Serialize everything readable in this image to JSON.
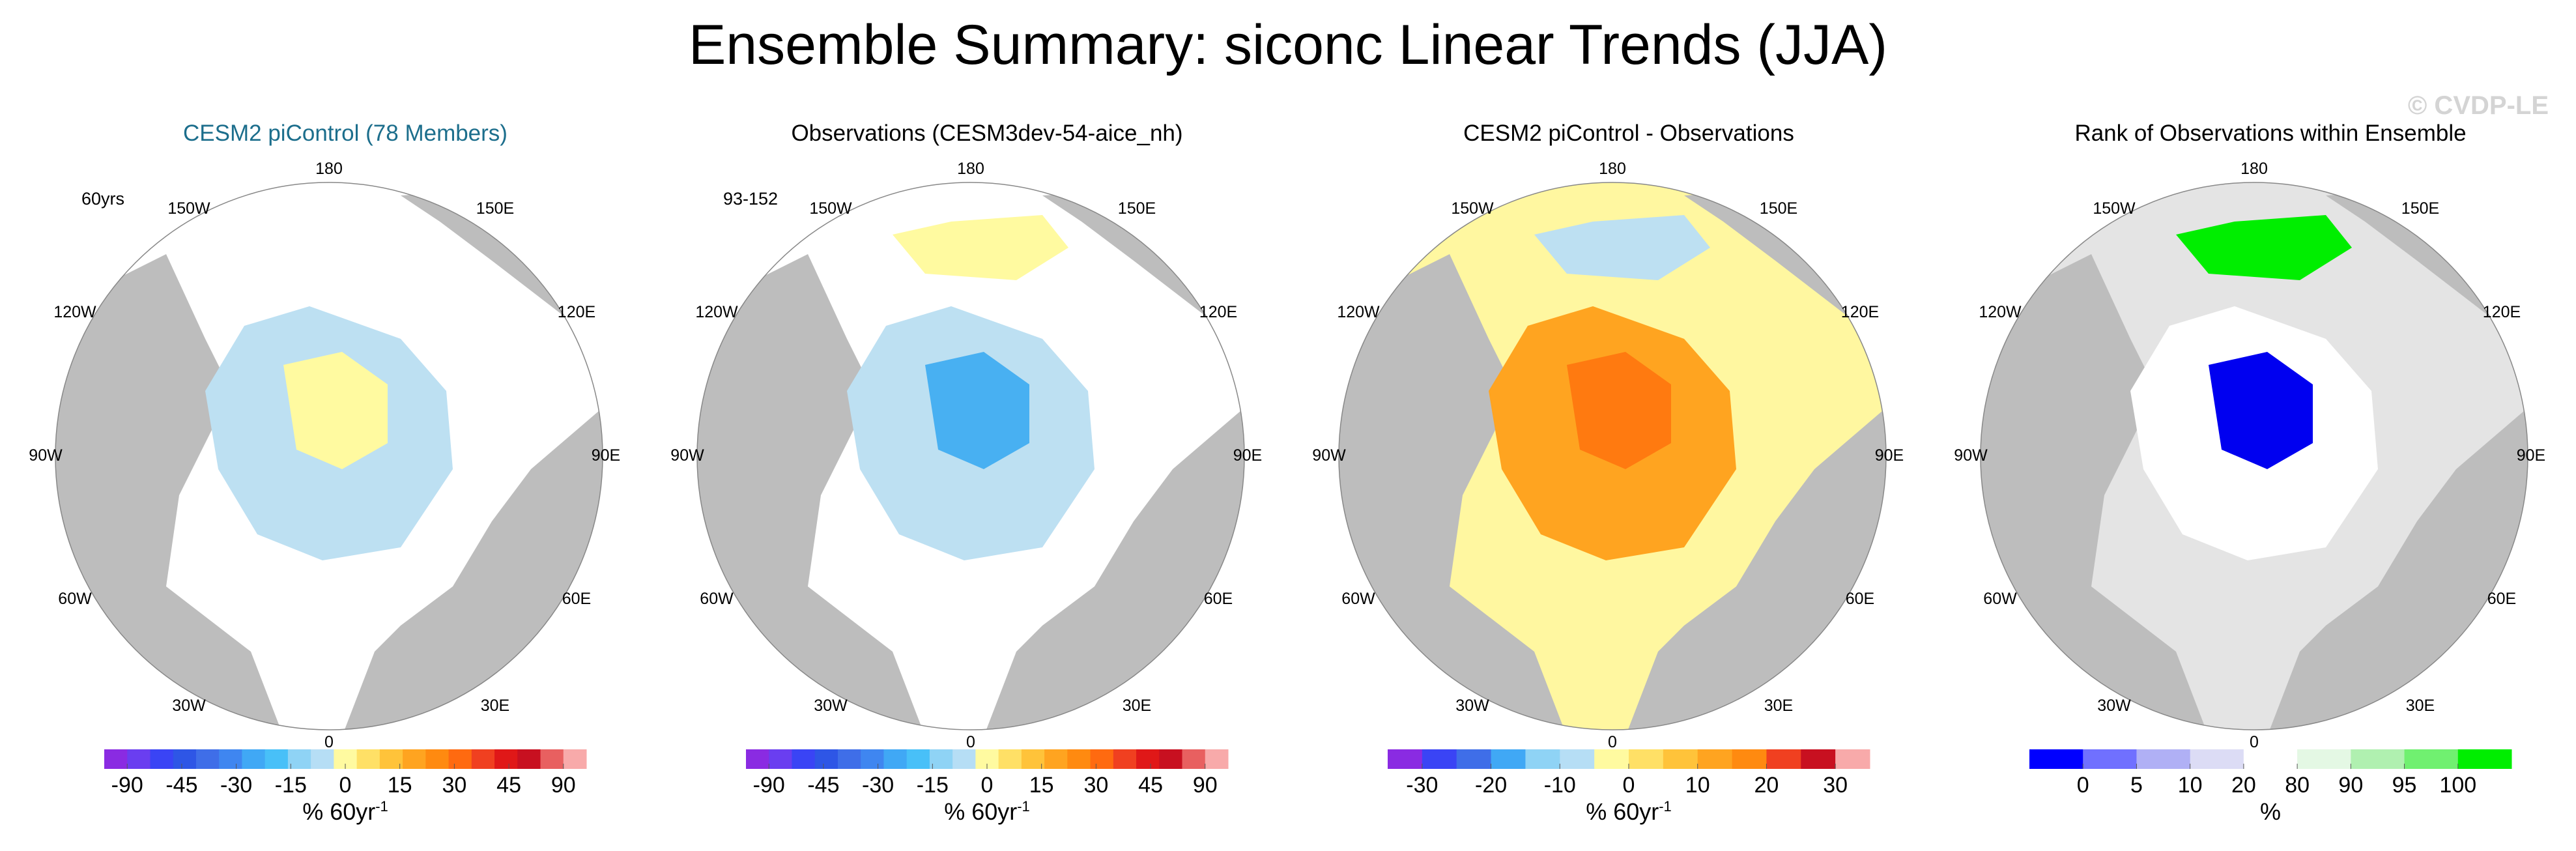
{
  "title": "Ensemble Summary: siconc Linear Trends (JJA)",
  "watermark": "© CVDP-LE",
  "longitude_labels": {
    "top": "180",
    "bottom": "0",
    "ul": "150W",
    "ur": "150E",
    "ml1": "120W",
    "mr1": "120E",
    "ml2": "90W",
    "mr2": "90E",
    "ll1": "60W",
    "lr1": "60E",
    "ll2": "30W",
    "lr2": "30E"
  },
  "chart_data": [
    {
      "type": "heatmap",
      "title": "CESM2 piControl (78 Members)",
      "label": "60yrs",
      "colorbar_ticks": [
        "-90",
        "-45",
        "-30",
        "-15",
        "0",
        "15",
        "30",
        "45",
        "90"
      ],
      "colorbar_units": "% 60yr",
      "colorbar_units_exp": "-1",
      "colors": [
        "#8a2be2",
        "#6a3ef0",
        "#3a44f5",
        "#2e56e6",
        "#3f6ee8",
        "#3f86f0",
        "#40a8f5",
        "#48c0f8",
        "#8fd3f5",
        "#b6def5",
        "#fffaa0",
        "#ffe066",
        "#ffc33a",
        "#ffa420",
        "#ff8a10",
        "#ff6a10",
        "#f04020",
        "#e01818",
        "#c81020",
        "#e86060",
        "#f8aaaa"
      ]
    },
    {
      "type": "heatmap",
      "title": "Observations (CESM3dev-54-aice_nh)",
      "label": "93-152",
      "colorbar_ticks": [
        "-90",
        "-45",
        "-30",
        "-15",
        "0",
        "15",
        "30",
        "45",
        "90"
      ],
      "colorbar_units": "% 60yr",
      "colorbar_units_exp": "-1",
      "colors": [
        "#8a2be2",
        "#6a3ef0",
        "#3a44f5",
        "#2e56e6",
        "#3f6ee8",
        "#3f86f0",
        "#40a8f5",
        "#48c0f8",
        "#8fd3f5",
        "#b6def5",
        "#fffaa0",
        "#ffe066",
        "#ffc33a",
        "#ffa420",
        "#ff8a10",
        "#ff6a10",
        "#f04020",
        "#e01818",
        "#c81020",
        "#e86060",
        "#f8aaaa"
      ]
    },
    {
      "type": "heatmap",
      "title": "CESM2 piControl - Observations",
      "label": "",
      "colorbar_ticks": [
        "-30",
        "-20",
        "-10",
        "0",
        "10",
        "20",
        "30"
      ],
      "colorbar_units": "% 60yr",
      "colorbar_units_exp": "-1",
      "colors": [
        "#8a2be2",
        "#3a44f5",
        "#3f6ee8",
        "#40a8f5",
        "#8fd3f5",
        "#b6def5",
        "#fffaa0",
        "#ffe066",
        "#ffc33a",
        "#ffa420",
        "#ff8a10",
        "#f04020",
        "#c81020",
        "#f8aaaa"
      ]
    },
    {
      "type": "heatmap",
      "title": "Rank of Observations within Ensemble",
      "label": "",
      "colorbar_ticks": [
        "0",
        "5",
        "10",
        "20",
        "80",
        "90",
        "95",
        "100"
      ],
      "colorbar_units": "%",
      "colorbar_units_exp": "",
      "colors": [
        "#0000ff",
        "#7070ff",
        "#b0b0f5",
        "#dcdcf5",
        "#ffffff",
        "#e4f8e4",
        "#b0f0b0",
        "#70f070",
        "#00ee00"
      ]
    }
  ]
}
